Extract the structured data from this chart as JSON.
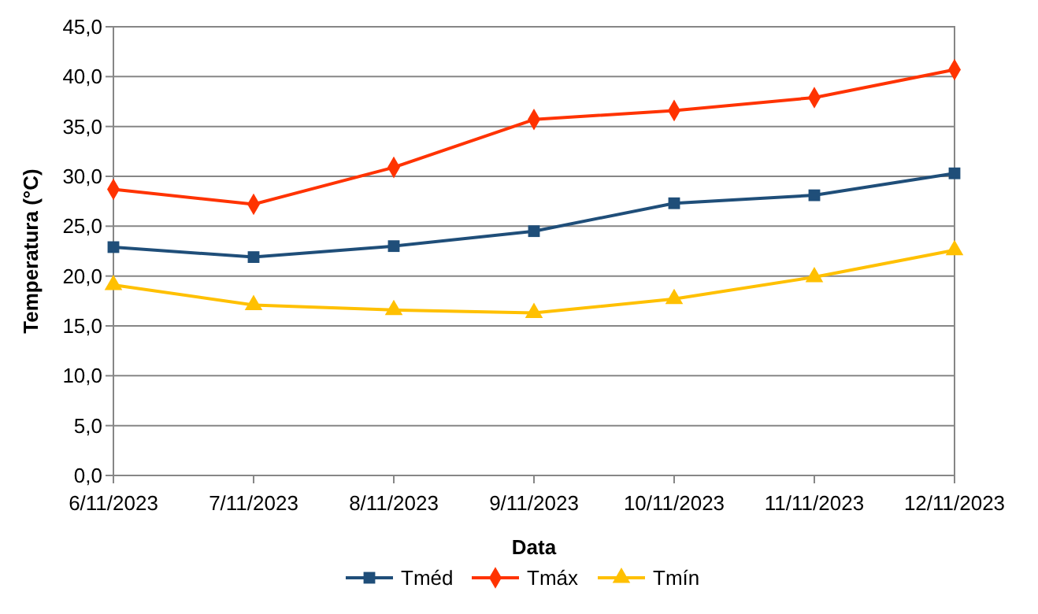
{
  "chart_data": {
    "type": "line",
    "xlabel": "Data",
    "ylabel": "Temperatura (°C)",
    "categories": [
      "6/11/2023",
      "7/11/2023",
      "8/11/2023",
      "9/11/2023",
      "10/11/2023",
      "11/11/2023",
      "12/11/2023"
    ],
    "series": [
      {
        "name": "Tméd",
        "color": "#1f4e79",
        "marker": "square",
        "values": [
          22.9,
          21.9,
          23.0,
          24.5,
          27.3,
          28.1,
          30.3
        ]
      },
      {
        "name": "Tmáx",
        "color": "#ff3300",
        "marker": "diamond",
        "values": [
          28.7,
          27.2,
          30.9,
          35.7,
          36.6,
          37.9,
          40.7
        ]
      },
      {
        "name": "Tmín",
        "color": "#ffc000",
        "marker": "triangle",
        "values": [
          19.1,
          17.1,
          16.6,
          16.3,
          17.7,
          19.9,
          22.6
        ]
      }
    ],
    "ylim": [
      0,
      45
    ],
    "yticks": [
      {
        "value": 0,
        "label": "0,0"
      },
      {
        "value": 5,
        "label": "5,0"
      },
      {
        "value": 10,
        "label": "10,0"
      },
      {
        "value": 15,
        "label": "15,0"
      },
      {
        "value": 20,
        "label": "20,0"
      },
      {
        "value": 25,
        "label": "25,0"
      },
      {
        "value": 30,
        "label": "30,0"
      },
      {
        "value": 35,
        "label": "35,0"
      },
      {
        "value": 40,
        "label": "40,0"
      },
      {
        "value": 45,
        "label": "45,0"
      }
    ],
    "grid": "y",
    "legend": "bottom",
    "line_style": "solid"
  }
}
